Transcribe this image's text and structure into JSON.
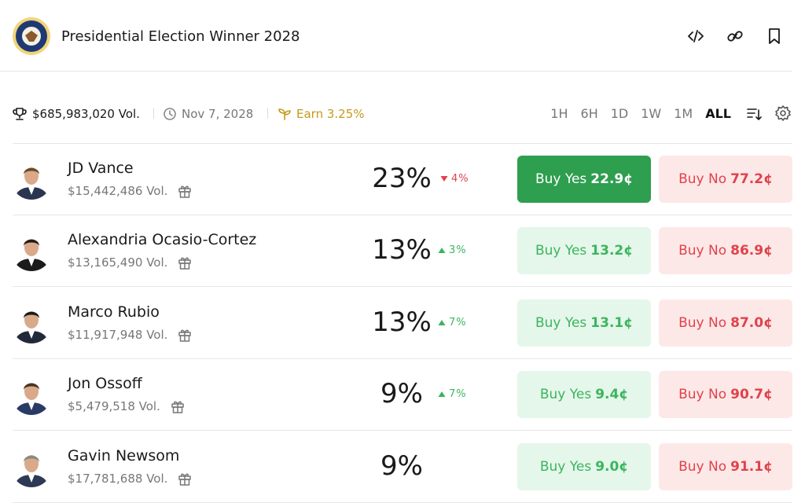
{
  "header": {
    "title": "Presidential Election Winner 2028"
  },
  "stats": {
    "volume": "$685,983,020 Vol.",
    "end_date": "Nov 7, 2028",
    "earn": "Earn 3.25%"
  },
  "time_ranges": [
    {
      "label": "1H",
      "selected": false
    },
    {
      "label": "6H",
      "selected": false
    },
    {
      "label": "1D",
      "selected": false
    },
    {
      "label": "1W",
      "selected": false
    },
    {
      "label": "1M",
      "selected": false
    },
    {
      "label": "ALL",
      "selected": true
    }
  ],
  "outcomes": [
    {
      "name": "JD Vance",
      "volume": "$15,442,486 Vol.",
      "chance": "23%",
      "change": {
        "direction": "down",
        "text": "4%"
      },
      "buy_yes": {
        "label": "Buy Yes",
        "price": "22.9¢"
      },
      "buy_no": {
        "label": "Buy No",
        "price": "77.2¢"
      },
      "highlighted": true
    },
    {
      "name": "Alexandria Ocasio-Cortez",
      "volume": "$13,165,490 Vol.",
      "chance": "13%",
      "change": {
        "direction": "up",
        "text": "3%"
      },
      "buy_yes": {
        "label": "Buy Yes",
        "price": "13.2¢"
      },
      "buy_no": {
        "label": "Buy No",
        "price": "86.9¢"
      },
      "highlighted": false
    },
    {
      "name": "Marco Rubio",
      "volume": "$11,917,948 Vol.",
      "chance": "13%",
      "change": {
        "direction": "up",
        "text": "7%"
      },
      "buy_yes": {
        "label": "Buy Yes",
        "price": "13.1¢"
      },
      "buy_no": {
        "label": "Buy No",
        "price": "87.0¢"
      },
      "highlighted": false
    },
    {
      "name": "Jon Ossoff",
      "volume": "$5,479,518 Vol.",
      "chance": "9%",
      "change": {
        "direction": "up",
        "text": "7%"
      },
      "buy_yes": {
        "label": "Buy Yes",
        "price": "9.4¢"
      },
      "buy_no": {
        "label": "Buy No",
        "price": "90.7¢"
      },
      "highlighted": false
    },
    {
      "name": "Gavin Newsom",
      "volume": "$17,781,688 Vol.",
      "chance": "9%",
      "buy_yes": {
        "label": "Buy Yes",
        "price": "9.0¢"
      },
      "buy_no": {
        "label": "Buy No",
        "price": "91.1¢"
      },
      "highlighted": false
    }
  ]
}
